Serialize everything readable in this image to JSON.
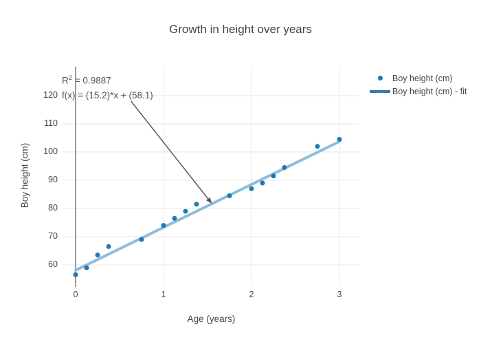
{
  "title": "Growth in height over years",
  "chart_data": {
    "type": "scatter",
    "title": "Growth in height over years",
    "xlabel": "Age (years)",
    "ylabel": "Boy height (cm)",
    "xlim": [
      -0.141,
      3.227
    ],
    "ylim": [
      52.7,
      130.2
    ],
    "xticks": [
      0,
      1,
      2,
      3
    ],
    "yticks": [
      60,
      70,
      80,
      90,
      100,
      110,
      120
    ],
    "grid": true,
    "legend_position": "top-right-outside",
    "colors": {
      "marker": "#1f77b4",
      "fit_line": "#8ebcdc",
      "legend_line": "#3579b5",
      "gridline": "#e8e8e8",
      "zeroline": "#555555",
      "arrow": "#555555",
      "text": "#444444"
    },
    "series": [
      {
        "name": "Boy height (cm)",
        "mode": "markers",
        "x": [
          0,
          0.125,
          0.25,
          0.375,
          0.75,
          1,
          1.125,
          1.25,
          1.375,
          1.75,
          2,
          2.125,
          2.25,
          2.375,
          2.75,
          3
        ],
        "y": [
          56.5,
          59,
          63.5,
          66.5,
          69,
          74,
          76.5,
          79,
          81.5,
          84.5,
          87,
          89,
          91.5,
          94.5,
          102,
          104.5
        ]
      },
      {
        "name": "Boy height (cm) - fit",
        "mode": "line",
        "fit": {
          "slope": 15.2,
          "intercept": 58.1,
          "x_start": 0,
          "x_end": 3
        }
      }
    ],
    "annotation": {
      "r_base": "R",
      "r_sup": "2",
      "r_eq": " = 0.9887",
      "equation": "f(x) = (15.2)*x + (58.1)",
      "arrow_from": [
        0.63,
        118.0
      ],
      "arrow_to": [
        1.55,
        81.7
      ]
    }
  },
  "legend": {
    "items": [
      {
        "label": "Boy height (cm)",
        "marker": "dot"
      },
      {
        "label": "Boy height (cm) - fit",
        "marker": "line"
      }
    ]
  }
}
